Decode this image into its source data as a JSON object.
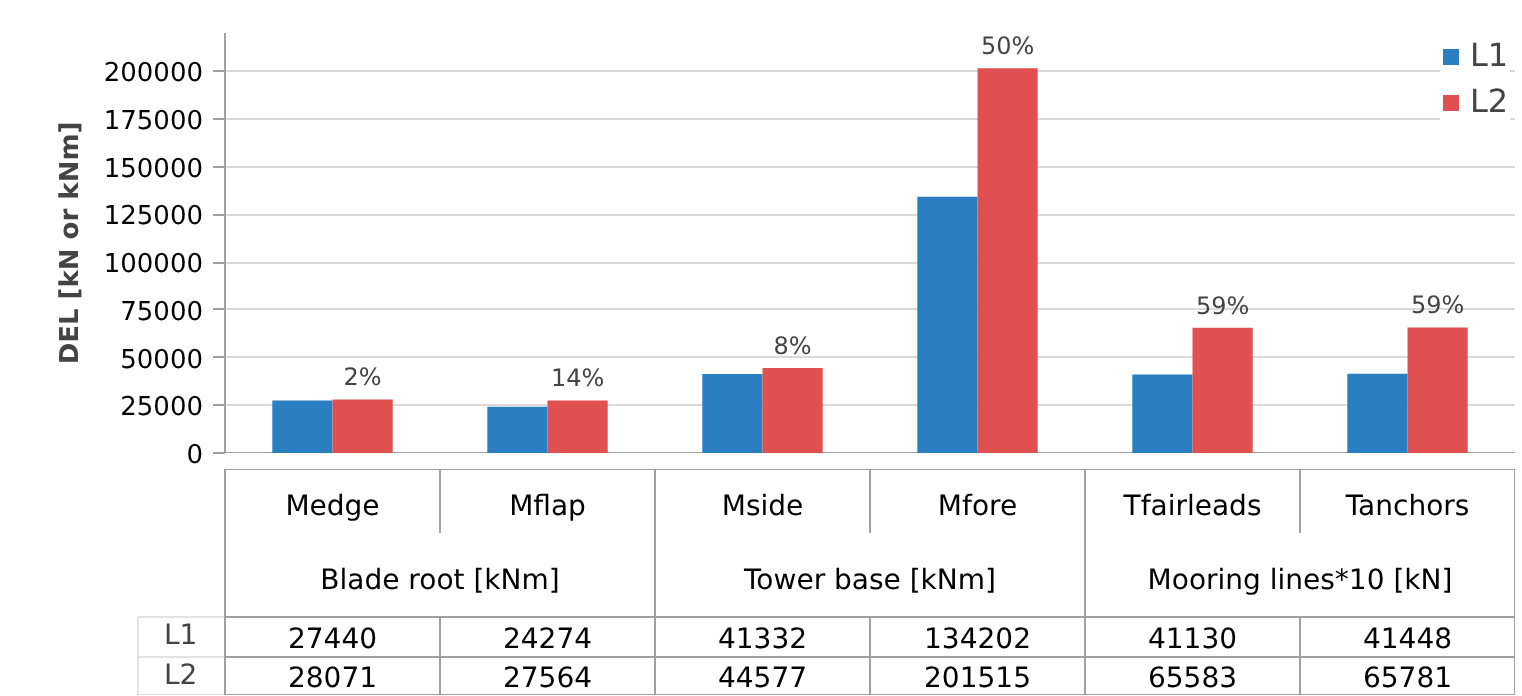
{
  "chart_data": {
    "type": "bar",
    "ylabel": "DEL [kN or kNm]",
    "categories": [
      "Medge",
      "Mflap",
      "Mside",
      "Mfore",
      "Tfairleads",
      "Tanchors"
    ],
    "series": [
      {
        "name": "L1",
        "color": "#2a7fc0",
        "values": [
          27440,
          24274,
          41332,
          134202,
          41130,
          41448
        ]
      },
      {
        "name": "L2",
        "color": "#e05050",
        "values": [
          28071,
          27564,
          44577,
          201515,
          65583,
          65781
        ]
      }
    ],
    "ylim": [
      0,
      220000
    ],
    "yticks": [
      0,
      25000,
      50000,
      75000,
      100000,
      125000,
      150000,
      175000,
      200000
    ],
    "grid": "y",
    "legend": "top right",
    "data_labels": true,
    "annotations": [
      {
        "text": "2%",
        "x": "Medge",
        "y": 28071
      },
      {
        "text": "14%",
        "x": "Mflap",
        "y": 27564
      },
      {
        "text": "8%",
        "x": "Mside",
        "y": 44577
      },
      {
        "text": "50%",
        "x": "Mfore",
        "y": 201515
      },
      {
        "text": "59%",
        "x": "Tfairleads",
        "y": 65583
      },
      {
        "text": "59%",
        "x": "Tanchors",
        "y": 65781
      },
      "Blade root [kNm]",
      "Tower base [kNm]",
      "Mooring lines*10 [kN]"
    ]
  }
}
